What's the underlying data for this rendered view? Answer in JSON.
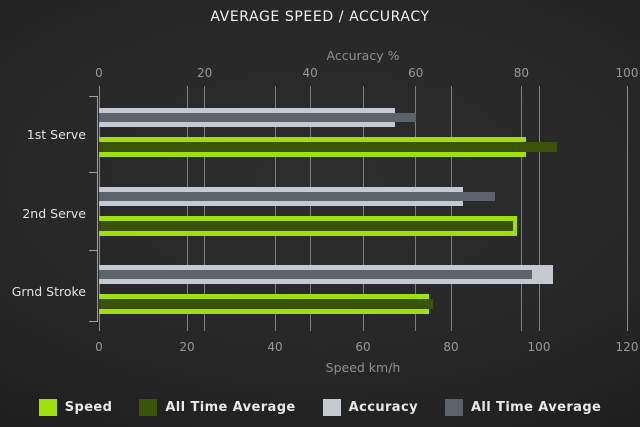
{
  "title": "AVERAGE SPEED / ACCURACY",
  "chart_data": {
    "type": "bar",
    "orientation": "horizontal",
    "categories": [
      "1st Serve",
      "2nd Serve",
      "Grnd Stroke"
    ],
    "axes": {
      "top": {
        "label": "Accuracy %",
        "min": 0,
        "max": 100,
        "ticks": [
          0,
          20,
          40,
          60,
          80,
          100
        ]
      },
      "bottom": {
        "label": "Speed km/h",
        "min": 0,
        "max": 120,
        "ticks": [
          0,
          20,
          40,
          60,
          80,
          100,
          120
        ]
      }
    },
    "series": [
      {
        "name": "Speed",
        "axis": "bottom",
        "role": "current",
        "color": "#a1df0a",
        "values": [
          97,
          95,
          75
        ]
      },
      {
        "name": "All Time Average",
        "axis": "bottom",
        "role": "average",
        "color": "#3b5307",
        "values": [
          104,
          94,
          76
        ]
      },
      {
        "name": "Accuracy",
        "axis": "top",
        "role": "current",
        "color": "#c4cad0",
        "values": [
          56,
          69,
          86
        ]
      },
      {
        "name": "All Time Average",
        "axis": "top",
        "role": "average",
        "color": "#5b646d",
        "values": [
          60,
          75,
          82
        ]
      }
    ],
    "grid": true,
    "legend_position": "bottom"
  },
  "colors": {
    "background_center": "#2e2e2e",
    "background_edge": "#131313",
    "grid": "#8c8c8c",
    "title_text": "#f2f2f2",
    "tick_text": "#989898",
    "axis_label_text": "#8f8f8f",
    "category_text": "#e3e3e3",
    "legend_text": "#e8e8e8"
  }
}
